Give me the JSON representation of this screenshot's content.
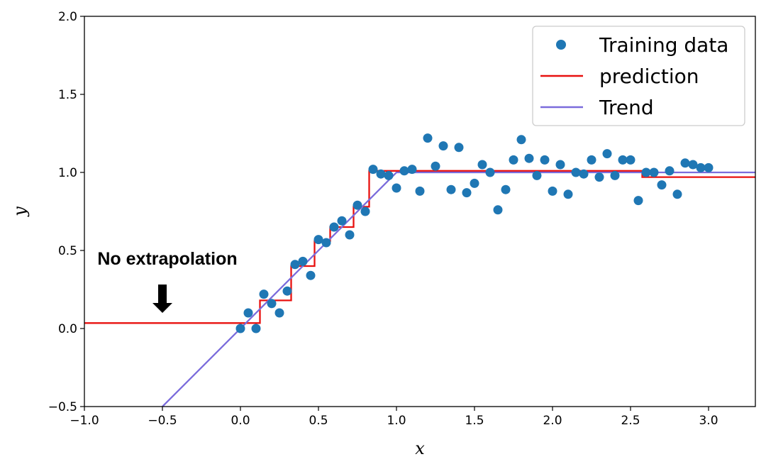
{
  "chart_data": {
    "type": "scatter",
    "title": "",
    "xlabel": "x",
    "ylabel": "y",
    "xlim": [
      -1.0,
      3.3
    ],
    "ylim": [
      -0.5,
      2.0
    ],
    "x_ticks": [
      -1.0,
      -0.5,
      0.0,
      0.5,
      1.0,
      1.5,
      2.0,
      2.5,
      3.0
    ],
    "x_tick_labels": [
      "−1.0",
      "−0.5",
      "0.0",
      "0.5",
      "1.0",
      "1.5",
      "2.0",
      "2.5",
      "3.0"
    ],
    "y_ticks": [
      -0.5,
      0.0,
      0.5,
      1.0,
      1.5,
      2.0
    ],
    "y_tick_labels": [
      "−0.5",
      "0.0",
      "0.5",
      "1.0",
      "1.5",
      "2.0"
    ],
    "grid": false,
    "legend_position": "top-right",
    "colors": {
      "training": "#1f77b4",
      "prediction": "#e8110f",
      "trend": "#7b6cdc"
    },
    "series": [
      {
        "name": "Training data",
        "kind": "scatter",
        "x": [
          0.0,
          0.05,
          0.1,
          0.15,
          0.2,
          0.25,
          0.3,
          0.35,
          0.4,
          0.45,
          0.5,
          0.55,
          0.6,
          0.65,
          0.7,
          0.75,
          0.8,
          0.85,
          0.9,
          0.95,
          1.0,
          1.05,
          1.1,
          1.15,
          1.2,
          1.25,
          1.3,
          1.35,
          1.4,
          1.45,
          1.5,
          1.55,
          1.6,
          1.65,
          1.7,
          1.75,
          1.8,
          1.85,
          1.9,
          1.95,
          2.0,
          2.05,
          2.1,
          2.15,
          2.2,
          2.25,
          2.3,
          2.35,
          2.4,
          2.45,
          2.5,
          2.55,
          2.6,
          2.65,
          2.7,
          2.75,
          2.8,
          2.85,
          2.9,
          2.95,
          3.0
        ],
        "y": [
          0.0,
          0.1,
          0.0,
          0.22,
          0.16,
          0.1,
          0.24,
          0.41,
          0.43,
          0.34,
          0.57,
          0.55,
          0.65,
          0.69,
          0.6,
          0.79,
          0.75,
          1.02,
          0.99,
          0.98,
          0.9,
          1.01,
          1.02,
          0.88,
          1.22,
          1.04,
          1.17,
          0.89,
          1.16,
          0.87,
          0.93,
          1.05,
          1.0,
          0.76,
          0.89,
          1.08,
          1.21,
          1.09,
          0.98,
          1.08,
          0.88,
          1.05,
          0.86,
          1.0,
          0.99,
          1.08,
          0.97,
          1.12,
          0.98,
          1.08,
          1.08,
          0.82,
          1.0,
          1.0,
          0.92,
          1.01,
          0.86,
          1.06,
          1.05,
          1.03,
          1.03
        ]
      },
      {
        "name": "prediction",
        "kind": "step",
        "x": [
          -1.0,
          0.125,
          0.125,
          0.325,
          0.325,
          0.475,
          0.475,
          0.575,
          0.575,
          0.725,
          0.725,
          0.825,
          0.825,
          2.575,
          2.575,
          3.3
        ],
        "y": [
          0.035,
          0.035,
          0.18,
          0.18,
          0.4,
          0.4,
          0.56,
          0.56,
          0.65,
          0.65,
          0.78,
          0.78,
          1.01,
          1.01,
          0.97,
          0.97
        ]
      },
      {
        "name": "Trend",
        "kind": "line",
        "x": [
          -0.5,
          1.0,
          3.3
        ],
        "y": [
          -0.5,
          1.0,
          1.0
        ]
      }
    ],
    "annotations": [
      {
        "text": "No extrapolation",
        "arrow_at": [
          -0.5,
          0.1
        ]
      }
    ]
  }
}
